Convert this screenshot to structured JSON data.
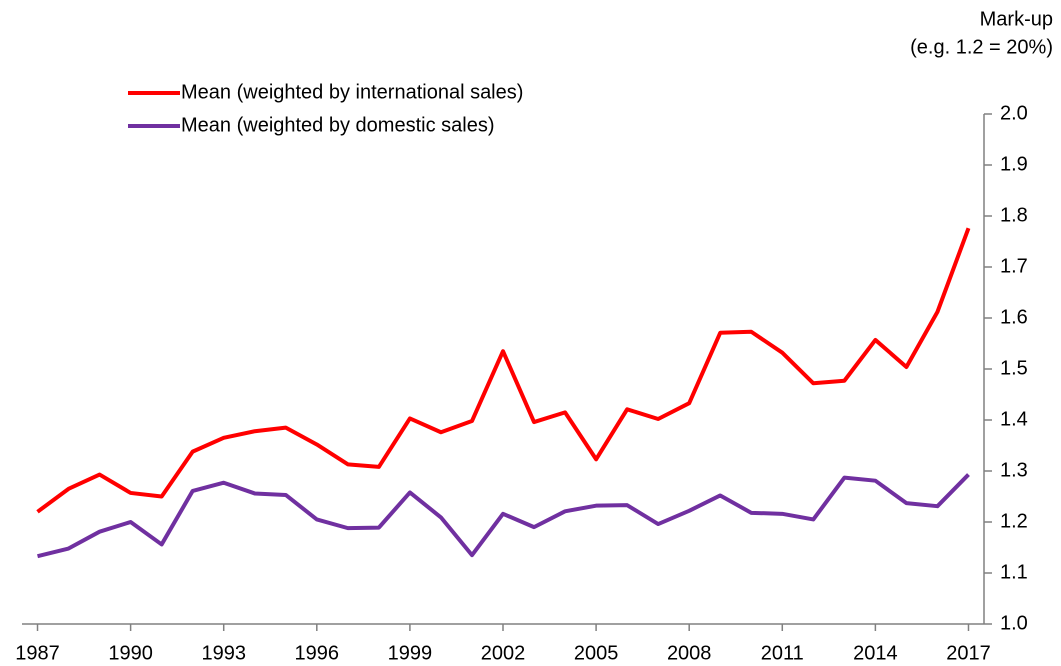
{
  "chart_data": {
    "type": "line",
    "y_label": [
      "Mark-up",
      "(e.g. 1.2 = 20%)"
    ],
    "x": [
      1987,
      1988,
      1989,
      1990,
      1991,
      1992,
      1993,
      1994,
      1995,
      1996,
      1997,
      1998,
      1999,
      2000,
      2001,
      2002,
      2003,
      2004,
      2005,
      2006,
      2007,
      2008,
      2009,
      2010,
      2011,
      2012,
      2013,
      2014,
      2015,
      2016,
      2017
    ],
    "series": [
      {
        "name": "Mean (weighted by international sales)",
        "color": "#ff0000",
        "values": [
          1.22,
          1.265,
          1.293,
          1.257,
          1.25,
          1.338,
          1.365,
          1.378,
          1.385,
          1.352,
          1.313,
          1.308,
          1.403,
          1.376,
          1.398,
          1.535,
          1.396,
          1.415,
          1.323,
          1.421,
          1.402,
          1.433,
          1.571,
          1.573,
          1.532,
          1.472,
          1.477,
          1.557,
          1.504,
          1.612,
          1.776
        ]
      },
      {
        "name": "Mean (weighted by domestic sales)",
        "color": "#7030a0",
        "values": [
          1.133,
          1.148,
          1.181,
          1.2,
          1.156,
          1.261,
          1.277,
          1.256,
          1.253,
          1.205,
          1.188,
          1.189,
          1.258,
          1.209,
          1.135,
          1.216,
          1.19,
          1.221,
          1.232,
          1.233,
          1.196,
          1.222,
          1.252,
          1.218,
          1.216,
          1.205,
          1.287,
          1.281,
          1.237,
          1.231,
          1.293
        ]
      }
    ],
    "xlim": [
      1986.5,
      2017.5
    ],
    "xticks": [
      1987,
      1990,
      1993,
      1996,
      1999,
      2002,
      2005,
      2008,
      2011,
      2014,
      2017
    ],
    "ylim": [
      1.0,
      2.0
    ],
    "yticks": [
      {
        "value": 1.0,
        "label": "1.0"
      },
      {
        "value": 1.1,
        "label": "1.1"
      },
      {
        "value": 1.2,
        "label": "1.2"
      },
      {
        "value": 1.3,
        "label": "1.3"
      },
      {
        "value": 1.4,
        "label": "1.4"
      },
      {
        "value": 1.5,
        "label": "1.5"
      },
      {
        "value": 1.6,
        "label": "1.6"
      },
      {
        "value": 1.7,
        "label": "1.7"
      },
      {
        "value": 1.8,
        "label": "1.8"
      },
      {
        "value": 1.9,
        "label": "1.9"
      },
      {
        "value": 2.0,
        "label": "2.0"
      }
    ],
    "y_axis_side": "right",
    "legend": "top-left",
    "grid": false
  }
}
